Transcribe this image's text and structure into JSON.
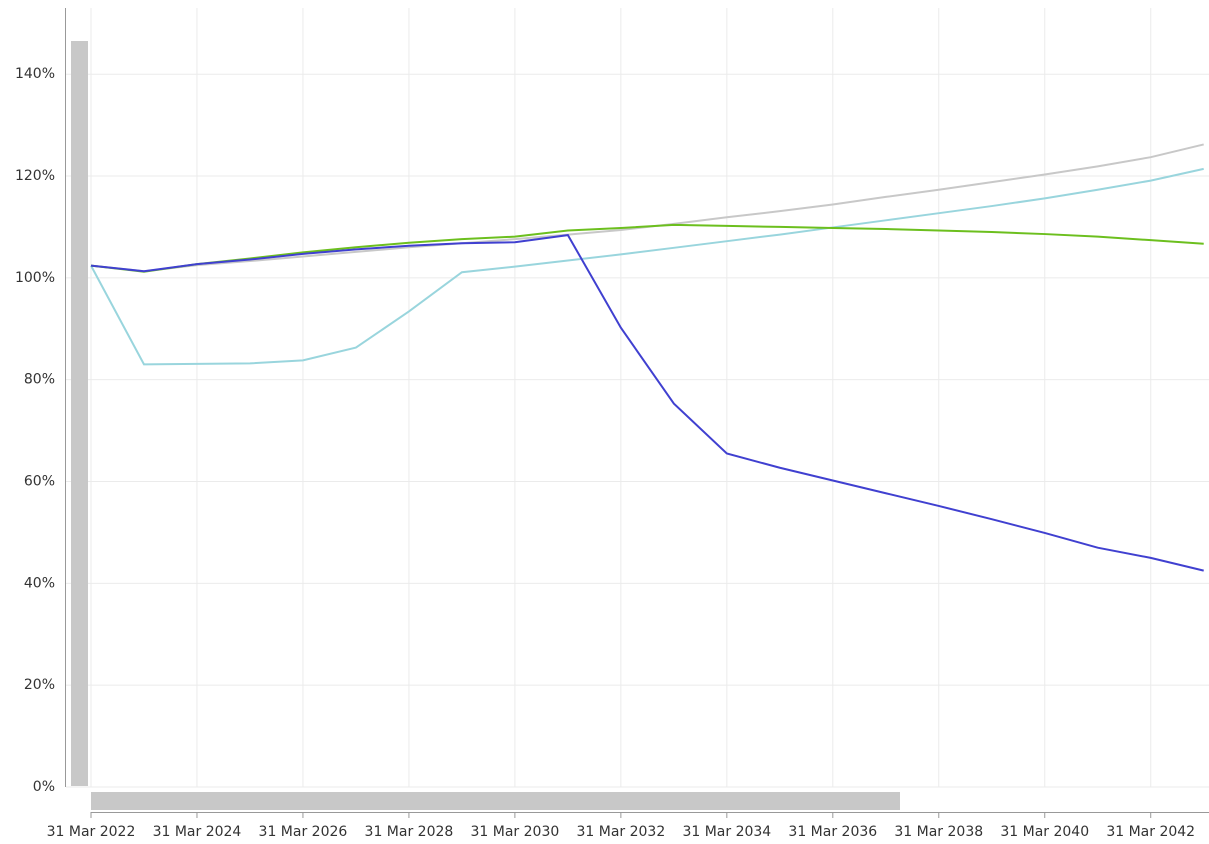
{
  "chart_data": {
    "type": "line",
    "x": [
      2022,
      2023,
      2024,
      2025,
      2026,
      2027,
      2028,
      2029,
      2030,
      2031,
      2032,
      2033,
      2034,
      2035,
      2036,
      2037,
      2038,
      2039,
      2040,
      2041,
      2042,
      2043
    ],
    "series": [
      {
        "color": "#c8c8c8",
        "values": [
          102.4,
          101.3,
          102.5,
          103.3,
          104.2,
          105.1,
          106.0,
          106.8,
          107.6,
          108.5,
          109.4,
          110.6,
          111.9,
          113.1,
          114.4,
          115.9,
          117.3,
          118.8,
          120.3,
          121.9,
          123.7,
          126.2
        ]
      },
      {
        "color": "#99d5dd",
        "values": [
          102.4,
          83.0,
          83.1,
          83.2,
          83.8,
          86.3,
          93.4,
          101.1,
          102.2,
          103.4,
          104.6,
          105.9,
          107.2,
          108.5,
          109.9,
          111.3,
          112.7,
          114.1,
          115.6,
          117.3,
          119.1,
          121.4
        ]
      },
      {
        "color": "#6cbf1e",
        "values": [
          102.4,
          101.2,
          102.7,
          103.8,
          105.0,
          106.0,
          106.9,
          107.6,
          108.1,
          109.3,
          109.8,
          110.4,
          110.2,
          110.0,
          109.8,
          109.6,
          109.3,
          109.0,
          108.6,
          108.1,
          107.4,
          106.7
        ]
      },
      {
        "color": "#4040d0",
        "values": [
          102.4,
          101.3,
          102.7,
          103.6,
          104.7,
          105.6,
          106.3,
          106.8,
          107.0,
          108.4,
          90.2,
          75.3,
          65.5,
          62.7,
          60.2,
          57.7,
          55.2,
          52.6,
          49.9,
          47.0,
          45.0,
          42.5
        ]
      }
    ],
    "xlim": [
      2022,
      2043.1
    ],
    "xticks": [
      {
        "value": 2022,
        "label": "31 Mar 2022"
      },
      {
        "value": 2024,
        "label": "31 Mar 2024"
      },
      {
        "value": 2026,
        "label": "31 Mar 2026"
      },
      {
        "value": 2028,
        "label": "31 Mar 2028"
      },
      {
        "value": 2030,
        "label": "31 Mar 2030"
      },
      {
        "value": 2032,
        "label": "31 Mar 2032"
      },
      {
        "value": 2034,
        "label": "31 Mar 2034"
      },
      {
        "value": 2036,
        "label": "31 Mar 2036"
      },
      {
        "value": 2038,
        "label": "31 Mar 2038"
      },
      {
        "value": 2040,
        "label": "31 Mar 2040"
      },
      {
        "value": 2042,
        "label": "31 Mar 2042"
      }
    ],
    "ylim": [
      0,
      153
    ],
    "yticks": [
      {
        "value": 0,
        "label": "0%"
      },
      {
        "value": 20,
        "label": "20%"
      },
      {
        "value": 40,
        "label": "40%"
      },
      {
        "value": 60,
        "label": "60%"
      },
      {
        "value": 80,
        "label": "80%"
      },
      {
        "value": 100,
        "label": "100%"
      },
      {
        "value": 120,
        "label": "120%"
      },
      {
        "value": 140,
        "label": "140%"
      }
    ],
    "grid": true
  }
}
